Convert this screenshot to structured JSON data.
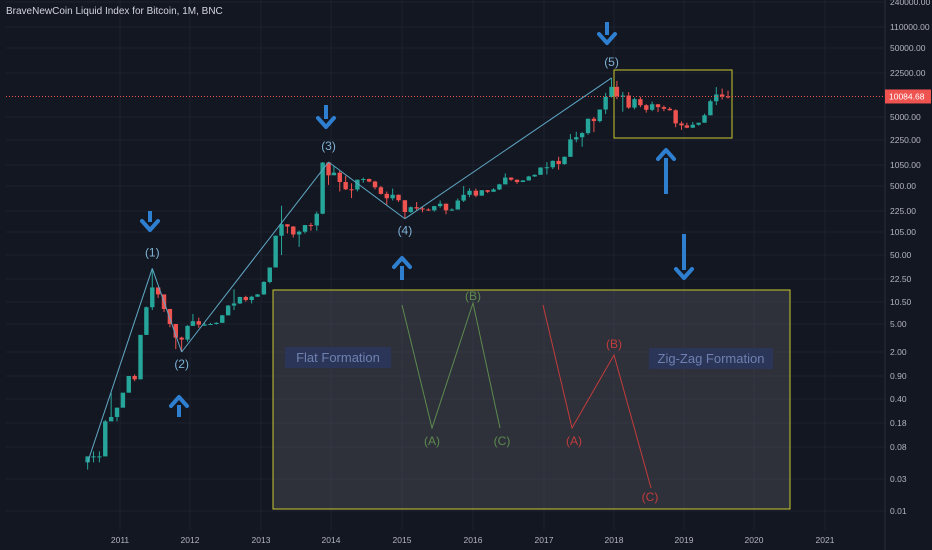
{
  "header": {
    "title": "BraveNewCoin Liquid Index for Bitcoin, 1M, BNC"
  },
  "colors": {
    "background": "#131722",
    "grid": "#1e2230",
    "bull": "#26a69a",
    "bear": "#ef5350",
    "wave_line": "#5fa8c4",
    "wave_label": "#7fb3d5",
    "arrow": "#2f7fd1",
    "box_stroke": "#c8c832",
    "box_fill": "rgba(80,82,88,0.45)",
    "formation_label_bg": "#2a3558",
    "formation_label_text": "#6f80b0",
    "flat_color": "#5d8a4f",
    "zigzag_color": "#c23c3c",
    "price_line": "#ef5350",
    "axis_text": "#b2b5be"
  },
  "chart_data": {
    "type": "candlestick",
    "title": "BraveNewCoin Liquid Index for Bitcoin, 1M, BNC",
    "y_scale": "log",
    "x_tick_labels": [
      "2011",
      "2012",
      "2013",
      "2014",
      "2015",
      "2016",
      "2017",
      "2018",
      "2019",
      "2020",
      "2021"
    ],
    "y_tick_labels": [
      "240000.00",
      "110000.00",
      "50000.00",
      "22500.00",
      "5000.00",
      "2250.00",
      "1050.00",
      "500.00",
      "225.00",
      "105.00",
      "50.00",
      "22.50",
      "10.50",
      "5.00",
      "2.00",
      "0.90",
      "0.40",
      "0.18",
      "0.08",
      "0.03",
      "0.01"
    ],
    "current_price_label": "10084.68",
    "current_price": 10084.68,
    "wave_labels": [
      "(1)",
      "(2)",
      "(3)",
      "(4)",
      "(5)"
    ],
    "wave_points": [
      {
        "label": "(1)",
        "date": "2011-06",
        "price": 32
      },
      {
        "label": "(2)",
        "date": "2011-11",
        "price": 2
      },
      {
        "label": "(3)",
        "date": "2013-12",
        "price": 1150
      },
      {
        "label": "(4)",
        "date": "2015-01",
        "price": 170
      },
      {
        "label": "(5)",
        "date": "2017-12",
        "price": 19000
      }
    ],
    "wave_start": {
      "date": "2010-07",
      "price": 0.05
    },
    "flat_formation": {
      "title": "Flat Formation",
      "labels": [
        "(A)",
        "(B)",
        "(C)"
      ]
    },
    "zigzag_formation": {
      "title": "Zig-Zag Formation",
      "labels": [
        "(A)",
        "(B)",
        "(C)"
      ]
    },
    "candles": [
      [
        "2010-07",
        0.05,
        0.06,
        0.04,
        0.06
      ],
      [
        "2010-08",
        0.06,
        0.07,
        0.05,
        0.06
      ],
      [
        "2010-09",
        0.06,
        0.07,
        0.05,
        0.06
      ],
      [
        "2010-10",
        0.06,
        0.2,
        0.06,
        0.19
      ],
      [
        "2010-11",
        0.19,
        0.5,
        0.2,
        0.22
      ],
      [
        "2010-12",
        0.22,
        0.3,
        0.19,
        0.3
      ],
      [
        "2011-01",
        0.3,
        0.45,
        0.3,
        0.5
      ],
      [
        "2011-02",
        0.5,
        0.9,
        0.5,
        0.9
      ],
      [
        "2011-03",
        0.9,
        0.95,
        0.75,
        0.8
      ],
      [
        "2011-04",
        0.8,
        3.5,
        0.8,
        3.5
      ],
      [
        "2011-05",
        3.5,
        9,
        3.5,
        8.8
      ],
      [
        "2011-06",
        8.8,
        32,
        8,
        17
      ],
      [
        "2011-07",
        17,
        17,
        12,
        13.5
      ],
      [
        "2011-08",
        13.5,
        13.5,
        7.5,
        8.3
      ],
      [
        "2011-09",
        8.3,
        8.3,
        4.5,
        5
      ],
      [
        "2011-10",
        5,
        5,
        2.2,
        3.2
      ],
      [
        "2011-11",
        3.2,
        3.3,
        2,
        3
      ],
      [
        "2011-12",
        3,
        4.8,
        2.8,
        4.7
      ],
      [
        "2012-01",
        4.7,
        7,
        4.7,
        5.5
      ],
      [
        "2012-02",
        5.5,
        6.2,
        4.4,
        4.9
      ],
      [
        "2012-03",
        4.9,
        5.2,
        4.7,
        4.9
      ],
      [
        "2012-04",
        4.9,
        5.2,
        4.9,
        5
      ],
      [
        "2012-05",
        5,
        5.3,
        4.9,
        5.2
      ],
      [
        "2012-06",
        5.2,
        6.8,
        5.2,
        6.7
      ],
      [
        "2012-07",
        6.7,
        9.5,
        6.7,
        9.3
      ],
      [
        "2012-08",
        9.3,
        16,
        8,
        10
      ],
      [
        "2012-09",
        10,
        12.5,
        9.8,
        12.4
      ],
      [
        "2012-10",
        12.4,
        12.9,
        10.6,
        11.2
      ],
      [
        "2012-11",
        11.2,
        12.9,
        10,
        12.5
      ],
      [
        "2012-12",
        12.5,
        13.7,
        12.5,
        13.5
      ],
      [
        "2013-01",
        13.5,
        21,
        13.3,
        20.4
      ],
      [
        "2013-02",
        20.4,
        33,
        19.5,
        33
      ],
      [
        "2013-03",
        33,
        94,
        33,
        93
      ],
      [
        "2013-04",
        93,
        266,
        50,
        139
      ],
      [
        "2013-05",
        139,
        140,
        100,
        128
      ],
      [
        "2013-06",
        128,
        130,
        88,
        97
      ],
      [
        "2013-07",
        97,
        111,
        65,
        106
      ],
      [
        "2013-08",
        106,
        135,
        100,
        135
      ],
      [
        "2013-09",
        135,
        146,
        110,
        133
      ],
      [
        "2013-10",
        133,
        220,
        110,
        204
      ],
      [
        "2013-11",
        204,
        1150,
        200,
        1130
      ],
      [
        "2013-12",
        1130,
        1150,
        520,
        730
      ],
      [
        "2014-01",
        730,
        1000,
        740,
        800
      ],
      [
        "2014-02",
        800,
        850,
        420,
        575
      ],
      [
        "2014-03",
        575,
        720,
        440,
        450
      ],
      [
        "2014-04",
        450,
        550,
        340,
        447
      ],
      [
        "2014-05",
        447,
        625,
        420,
        625
      ],
      [
        "2014-06",
        625,
        675,
        560,
        640
      ],
      [
        "2014-07",
        640,
        650,
        570,
        585
      ],
      [
        "2014-08",
        585,
        600,
        450,
        480
      ],
      [
        "2014-09",
        480,
        500,
        380,
        389
      ],
      [
        "2014-10",
        389,
        420,
        275,
        338
      ],
      [
        "2014-11",
        338,
        460,
        315,
        378
      ],
      [
        "2014-12",
        378,
        380,
        300,
        317
      ],
      [
        "2015-01",
        317,
        320,
        170,
        217
      ],
      [
        "2015-02",
        217,
        260,
        210,
        254
      ],
      [
        "2015-03",
        254,
        300,
        230,
        244
      ],
      [
        "2015-04",
        244,
        260,
        215,
        236
      ],
      [
        "2015-05",
        236,
        245,
        225,
        230
      ],
      [
        "2015-06",
        230,
        265,
        220,
        263
      ],
      [
        "2015-07",
        263,
        315,
        250,
        284
      ],
      [
        "2015-08",
        284,
        285,
        200,
        230
      ],
      [
        "2015-09",
        230,
        245,
        225,
        236
      ],
      [
        "2015-10",
        236,
        335,
        235,
        314
      ],
      [
        "2015-11",
        314,
        500,
        300,
        377
      ],
      [
        "2015-12",
        377,
        465,
        350,
        430
      ],
      [
        "2016-01",
        430,
        460,
        350,
        368
      ],
      [
        "2016-02",
        368,
        440,
        365,
        437
      ],
      [
        "2016-03",
        437,
        440,
        400,
        416
      ],
      [
        "2016-04",
        416,
        465,
        415,
        448
      ],
      [
        "2016-05",
        448,
        540,
        440,
        530
      ],
      [
        "2016-06",
        530,
        780,
        530,
        673
      ],
      [
        "2016-07",
        673,
        680,
        600,
        624
      ],
      [
        "2016-08",
        624,
        630,
        540,
        575
      ],
      [
        "2016-09",
        575,
        615,
        590,
        608
      ],
      [
        "2016-10",
        608,
        715,
        605,
        700
      ],
      [
        "2016-11",
        700,
        755,
        690,
        742
      ],
      [
        "2016-12",
        742,
        970,
        745,
        960
      ],
      [
        "2017-01",
        960,
        1150,
        750,
        970
      ],
      [
        "2017-02",
        970,
        1210,
        910,
        1190
      ],
      [
        "2017-03",
        1190,
        1350,
        890,
        1080
      ],
      [
        "2017-04",
        1080,
        1360,
        1060,
        1350
      ],
      [
        "2017-05",
        1350,
        2760,
        1340,
        2300
      ],
      [
        "2017-06",
        2300,
        3000,
        2100,
        2480
      ],
      [
        "2017-07",
        2480,
        2950,
        1830,
        2860
      ],
      [
        "2017-08",
        2860,
        4750,
        2700,
        4700
      ],
      [
        "2017-09",
        4700,
        5000,
        2950,
        4340
      ],
      [
        "2017-10",
        4340,
        6460,
        4150,
        6460
      ],
      [
        "2017-11",
        6460,
        11400,
        5550,
        9950
      ],
      [
        "2017-12",
        9950,
        19000,
        9700,
        14000
      ],
      [
        "2018-01",
        14000,
        17200,
        9200,
        10200
      ],
      [
        "2018-02",
        10200,
        11800,
        6000,
        10400
      ],
      [
        "2018-03",
        10400,
        11700,
        6600,
        6900
      ],
      [
        "2018-04",
        6900,
        9700,
        6500,
        9200
      ],
      [
        "2018-05",
        9200,
        9990,
        7000,
        7480
      ],
      [
        "2018-06",
        7480,
        7750,
        5800,
        6400
      ],
      [
        "2018-07",
        6400,
        8480,
        6100,
        7730
      ],
      [
        "2018-08",
        7730,
        7760,
        5900,
        7010
      ],
      [
        "2018-09",
        7010,
        7400,
        6100,
        6620
      ],
      [
        "2018-10",
        6620,
        7000,
        6200,
        6300
      ],
      [
        "2018-11",
        6300,
        6500,
        3500,
        4000
      ],
      [
        "2018-12",
        4000,
        4300,
        3200,
        3740
      ],
      [
        "2019-01",
        3740,
        4100,
        3400,
        3450
      ],
      [
        "2019-02",
        3450,
        4200,
        3400,
        3820
      ],
      [
        "2019-03",
        3820,
        4100,
        3700,
        4100
      ],
      [
        "2019-04",
        4100,
        5600,
        4100,
        5300
      ],
      [
        "2019-05",
        5300,
        9100,
        5300,
        8570
      ],
      [
        "2019-06",
        8570,
        13900,
        7500,
        10800
      ],
      [
        "2019-07",
        10800,
        13200,
        9100,
        10100
      ],
      [
        "2019-08",
        10100,
        12300,
        9400,
        10084.68
      ]
    ]
  }
}
